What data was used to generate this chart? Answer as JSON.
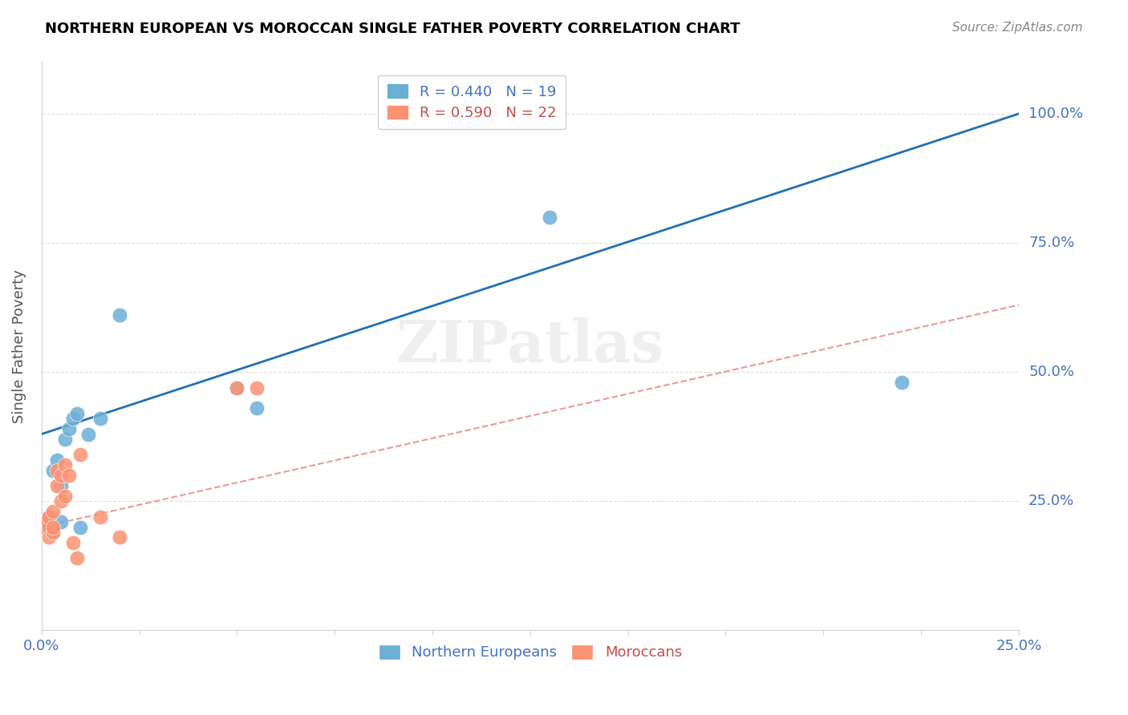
{
  "title": "NORTHERN EUROPEAN VS MOROCCAN SINGLE FATHER POVERTY CORRELATION CHART",
  "source": "Source: ZipAtlas.com",
  "ylabel": "Single Father Poverty",
  "y_ticks": [
    0.0,
    0.25,
    0.5,
    0.75,
    1.0
  ],
  "y_tick_labels": [
    "",
    "25.0%",
    "50.0%",
    "75.0%",
    "100.0%"
  ],
  "legend_blue": "R = 0.440   N = 19",
  "legend_pink": "R = 0.590   N = 22",
  "legend_label_blue": "Northern Europeans",
  "legend_label_pink": "Moroccans",
  "blue_color": "#6baed6",
  "pink_color": "#fc9272",
  "blue_line_color": "#2171b5",
  "pink_line_color": "#e07070",
  "blue_text_color": "#4472c4",
  "pink_text_color": "#c0504d",
  "watermark": "ZIPatlas",
  "northern_europeans_x": [
    0.001,
    0.002,
    0.003,
    0.003,
    0.004,
    0.005,
    0.005,
    0.006,
    0.007,
    0.008,
    0.009,
    0.01,
    0.012,
    0.015,
    0.02,
    0.05,
    0.055,
    0.13,
    0.22
  ],
  "northern_europeans_y": [
    0.2,
    0.22,
    0.19,
    0.31,
    0.33,
    0.21,
    0.28,
    0.37,
    0.39,
    0.41,
    0.42,
    0.2,
    0.38,
    0.41,
    0.61,
    0.47,
    0.43,
    0.8,
    0.48
  ],
  "moroccans_x": [
    0.001,
    0.001,
    0.002,
    0.002,
    0.002,
    0.003,
    0.003,
    0.003,
    0.004,
    0.004,
    0.005,
    0.005,
    0.006,
    0.006,
    0.007,
    0.008,
    0.009,
    0.01,
    0.015,
    0.02,
    0.05,
    0.055
  ],
  "moroccans_y": [
    0.2,
    0.21,
    0.18,
    0.2,
    0.22,
    0.19,
    0.2,
    0.23,
    0.28,
    0.31,
    0.25,
    0.3,
    0.26,
    0.32,
    0.3,
    0.17,
    0.14,
    0.34,
    0.22,
    0.18,
    0.47,
    0.47
  ],
  "xlim": [
    0.0,
    0.25
  ],
  "ylim": [
    0.0,
    1.1
  ],
  "blue_trendline_x": [
    0.0,
    0.25
  ],
  "blue_trendline_y": [
    0.38,
    1.0
  ],
  "pink_trendline_x": [
    0.0,
    0.25
  ],
  "pink_trendline_y": [
    0.2,
    0.63
  ]
}
